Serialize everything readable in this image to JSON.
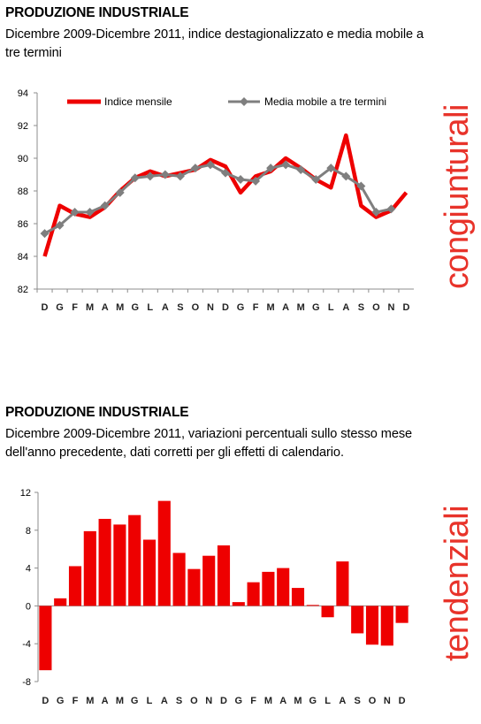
{
  "charts": {
    "line": {
      "title": "PRODUZIONE INDUSTRIALE",
      "subtitle": "Dicembre 2009-Dicembre 2011, indice destagionalizzato e media mobile a tre termini",
      "side_label": "congiunturali"
    },
    "bar": {
      "title": "PRODUZIONE INDUSTRIALE",
      "subtitle": "Dicembre 2009-Dicembre 2011, variazioni percentuali sullo stesso mese dell'anno precedente, dati corretti per gli effetti di calendario.",
      "side_label": "tendenziali"
    }
  },
  "colors": {
    "red": "#ee0000",
    "gray": "#7f7f7f",
    "side_label": "#e8332a"
  },
  "chart_data": [
    {
      "type": "line",
      "categories": [
        "D",
        "G",
        "F",
        "M",
        "A",
        "M",
        "G",
        "L",
        "A",
        "S",
        "O",
        "N",
        "D",
        "G",
        "F",
        "M",
        "A",
        "M",
        "G",
        "L",
        "A",
        "S",
        "O",
        "N",
        "D"
      ],
      "ylim": [
        82,
        94
      ],
      "yticks": [
        82,
        84,
        86,
        88,
        90,
        92,
        94
      ],
      "legend": "top",
      "grid": false,
      "series": [
        {
          "name": "Indice mensile",
          "color": "#ee0000",
          "values": [
            84.0,
            87.1,
            86.6,
            86.4,
            87.0,
            88.0,
            88.8,
            89.2,
            88.9,
            89.1,
            89.3,
            89.9,
            89.5,
            87.9,
            88.9,
            89.2,
            90.0,
            89.4,
            88.7,
            88.2,
            91.4,
            87.1,
            86.4,
            86.8,
            87.9
          ]
        },
        {
          "name": "Media mobile a tre termini",
          "color": "#7f7f7f",
          "values": [
            85.4,
            85.9,
            86.7,
            86.7,
            87.1,
            87.9,
            88.8,
            88.9,
            89.0,
            88.9,
            89.4,
            89.6,
            89.1,
            88.7,
            88.6,
            89.4,
            89.6,
            89.3,
            88.7,
            89.4,
            88.9,
            88.3,
            86.7,
            86.9,
            null
          ]
        }
      ]
    },
    {
      "type": "bar",
      "categories": [
        "D",
        "G",
        "F",
        "M",
        "A",
        "M",
        "G",
        "L",
        "A",
        "S",
        "O",
        "N",
        "D",
        "G",
        "F",
        "M",
        "A",
        "M",
        "G",
        "L",
        "A",
        "S",
        "O",
        "N",
        "D"
      ],
      "ylim": [
        -8,
        12
      ],
      "yticks": [
        -8,
        -4,
        0,
        4,
        8,
        12
      ],
      "grid": false,
      "series": [
        {
          "color": "#ee0000",
          "values": [
            -6.8,
            0.8,
            4.2,
            7.9,
            9.2,
            8.6,
            9.6,
            7.0,
            11.1,
            5.6,
            3.9,
            5.3,
            6.4,
            0.4,
            2.5,
            3.6,
            4.0,
            1.9,
            0.1,
            -1.2,
            4.7,
            -2.9,
            -4.1,
            -4.2,
            -1.8
          ]
        }
      ]
    }
  ]
}
